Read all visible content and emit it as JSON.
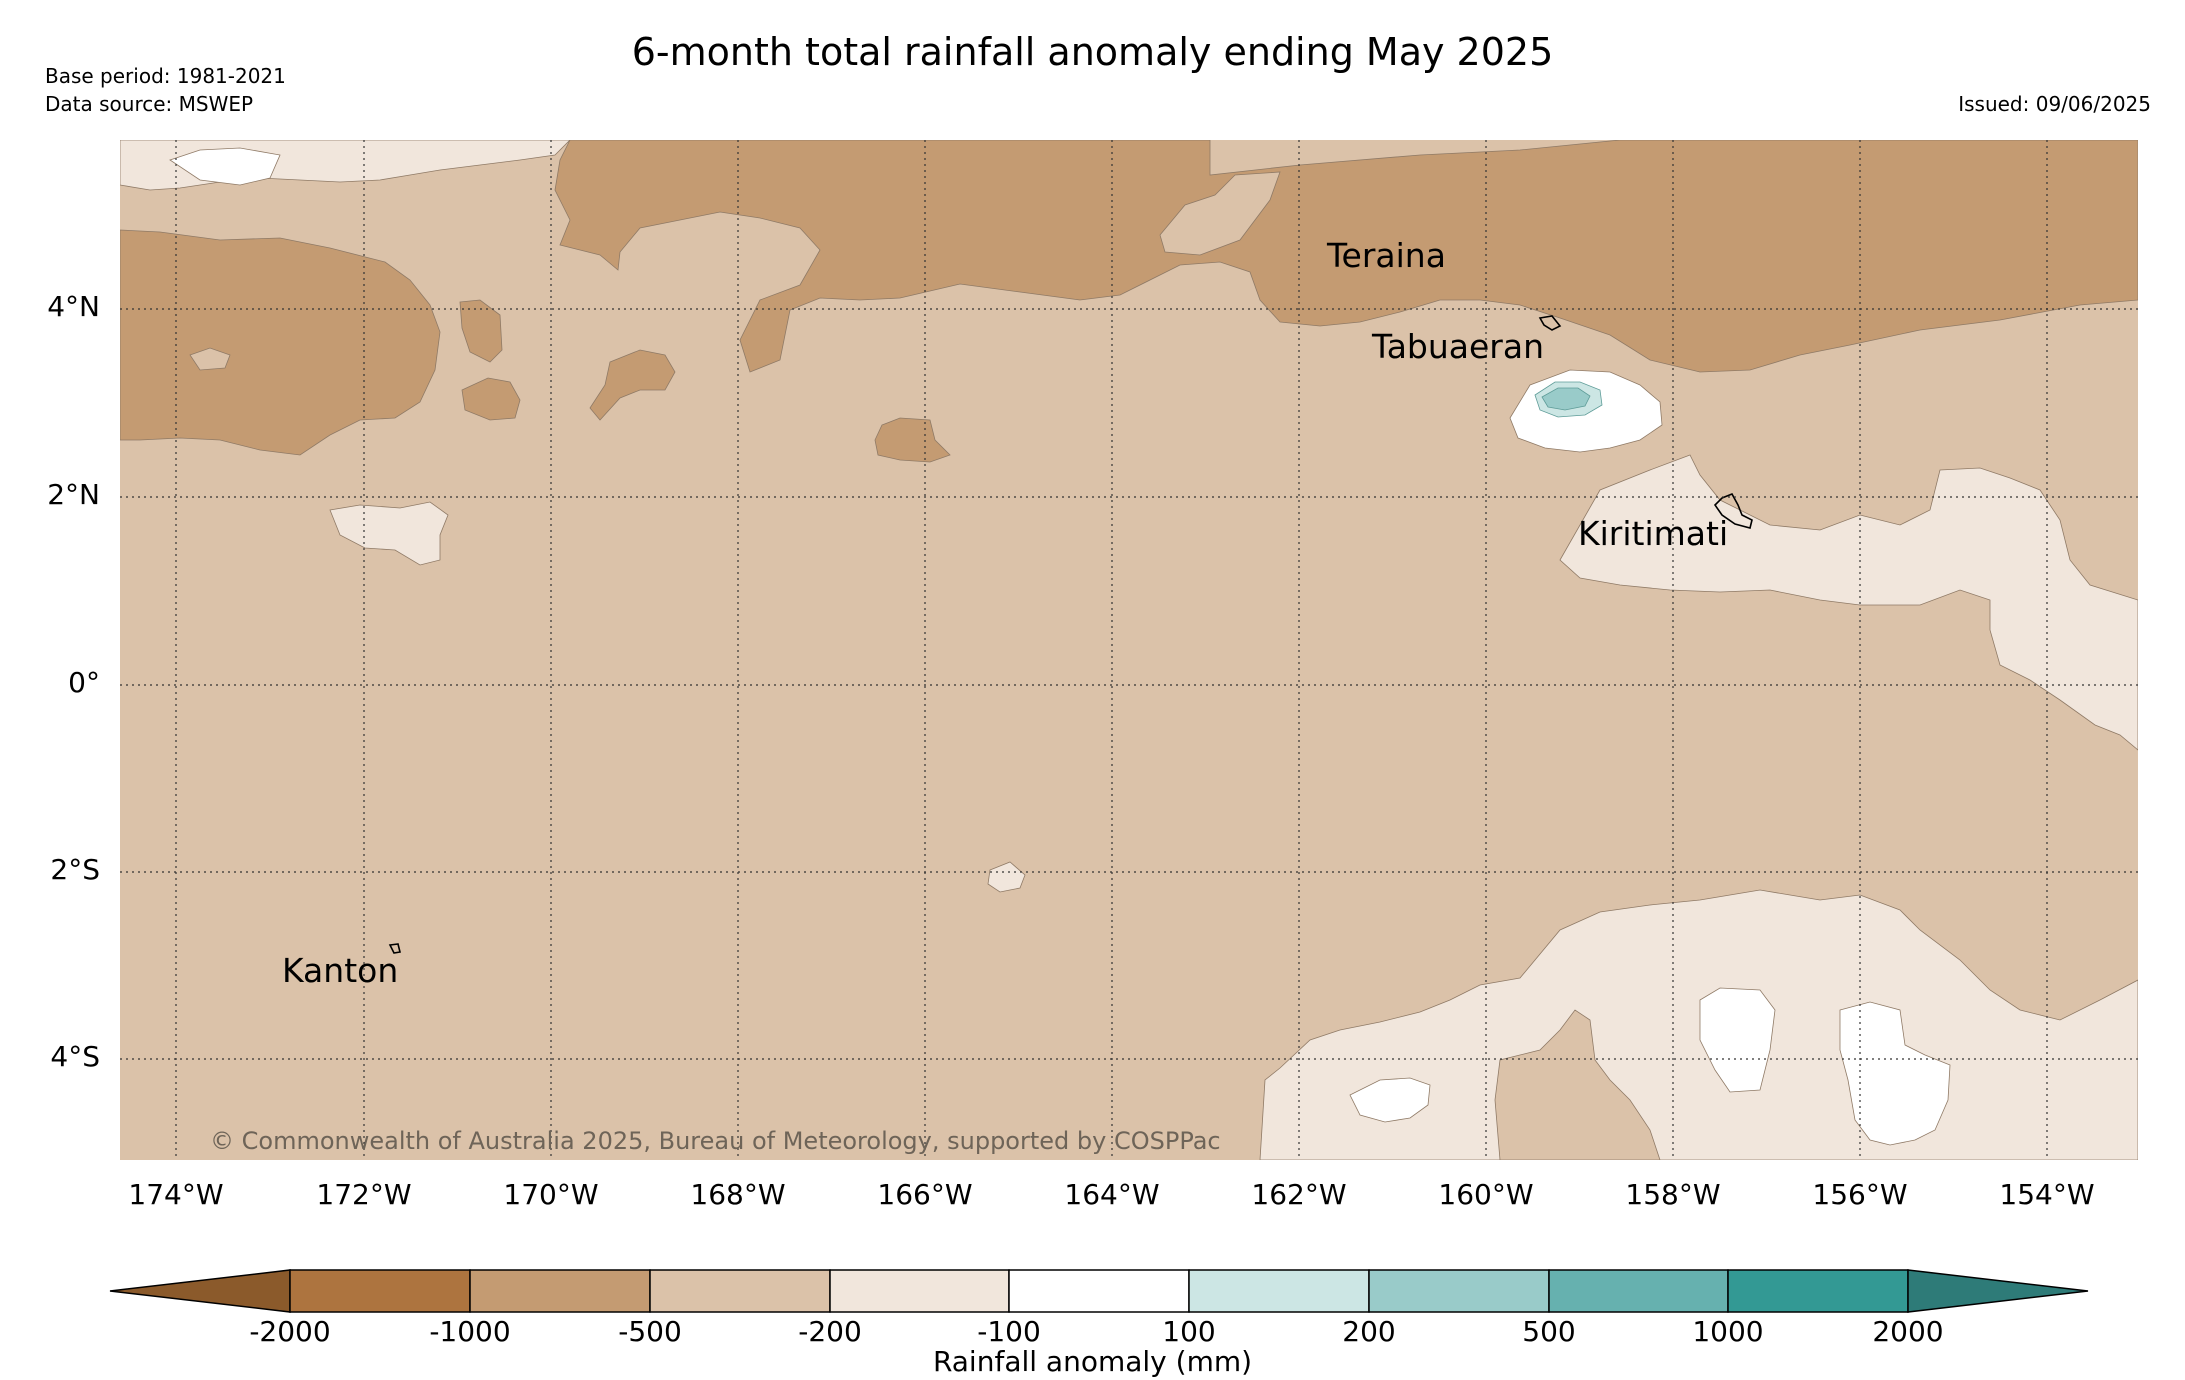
{
  "header": {
    "title": "6-month total rainfall anomaly ending May 2025",
    "base_period": "Base period: 1981-2021",
    "data_source": "Data source: MSWEP",
    "issued": "Issued: 09/06/2025"
  },
  "map": {
    "lat_labels": [
      "4°N",
      "2°N",
      "0°",
      "2°S",
      "4°S"
    ],
    "lon_labels": [
      "174°W",
      "172°W",
      "170°W",
      "168°W",
      "166°W",
      "164°W",
      "162°W",
      "160°W",
      "158°W",
      "156°W",
      "154°W"
    ],
    "places": [
      "Teraina",
      "Tabuaeran",
      "Kiritimati",
      "Kanton"
    ],
    "copyright": "© Commonwealth of Australia 2025, Bureau of Meteorology, supported by COSPPac",
    "colors": {
      "-2000_to_-1000": "#ad743f",
      "-1000_to_-500": "#c49b72",
      "-500_to_-200": "#dbc2a9",
      "-200_to_-100": "#f1e6dc",
      "-100_to_100": "#ffffff",
      "100_to_200": "#cce6e4",
      "200_to_500": "#99cbc9",
      "500_to_1000": "#66b1af",
      "1000_to_2000": "#339994",
      "over_2000": "#2e7b78",
      "under_-2000": "#8b5a2b"
    }
  },
  "colorbar": {
    "title": "Rainfall anomaly (mm)",
    "ticks": [
      "-2000",
      "-1000",
      "-500",
      "-200",
      "-100",
      "100",
      "200",
      "500",
      "1000",
      "2000"
    ]
  }
}
